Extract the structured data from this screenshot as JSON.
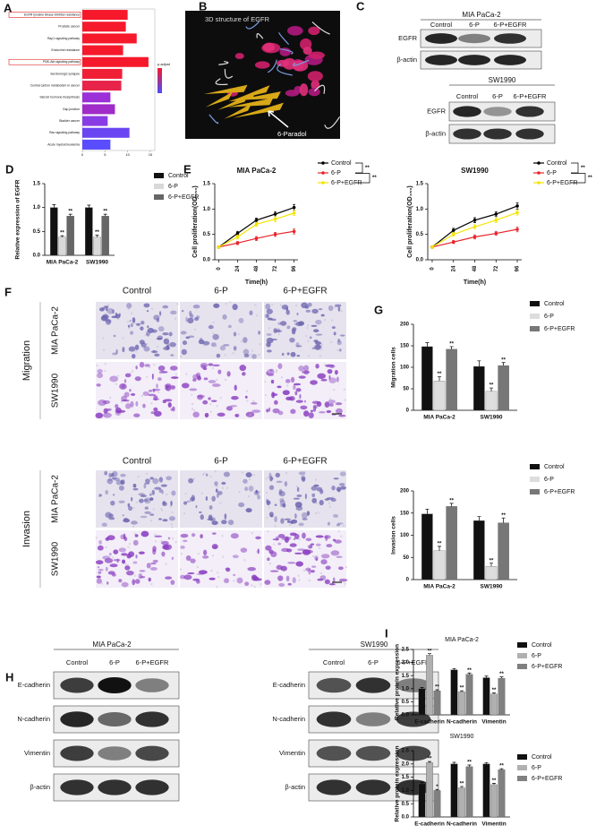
{
  "panel_letters": [
    "A",
    "B",
    "C",
    "D",
    "E",
    "F",
    "G",
    "H",
    "I"
  ],
  "A": {
    "chart_data": {
      "type": "hbar",
      "legend_title": "p.adjust",
      "categories": [
        "EGFR tyrosine kinase inhibitor resistance",
        "Prostate cancer",
        "Rap1 signaling pathway",
        "Endocrine resistance",
        "PI3K-Akt signaling pathway",
        "Serotonergic synapse",
        "Central carbon metabolism in cancer",
        "Steroid hormone biosynthesis",
        "Gap junction",
        "Bladder cancer",
        "Ras signaling pathway",
        "Acute myeloid leukemia"
      ],
      "values": [
        10,
        9.6,
        12,
        9,
        14.6,
        8.8,
        8.6,
        6.2,
        7.2,
        5.6,
        10.4,
        6.2
      ],
      "colors": [
        "#f5192b",
        "#f5192b",
        "#f5192b",
        "#f5192b",
        "#f5192b",
        "#f01f35",
        "#e8244a",
        "#9b2fd8",
        "#a02bc8",
        "#8a3ce4",
        "#6a45f2",
        "#5a4cff"
      ],
      "highlighted": [
        0,
        4
      ],
      "xlim": [
        0,
        16
      ],
      "xticks": [
        0,
        5,
        10,
        15
      ]
    }
  },
  "B": {
    "title": "3D structure of EGFR",
    "arrow_label": "6-Paradol"
  },
  "C": {
    "blots": [
      {
        "cell_line": "MIA PaCa-2",
        "lanes": [
          "Control",
          "6-P",
          "6-P+EGFR"
        ],
        "rows": [
          "EGFR",
          "β-actin"
        ]
      },
      {
        "cell_line": "SW1990",
        "lanes": [
          "Control",
          "6-P",
          "6-P+EGFR"
        ],
        "rows": [
          "EGFR",
          "β-actin"
        ]
      }
    ]
  },
  "D": {
    "chart_data": {
      "type": "bar",
      "ylabel": "Relative expression of EGFR",
      "categories": [
        "MIA PaCa-2",
        "SW1990"
      ],
      "series": [
        {
          "name": "Control",
          "color": "#111111",
          "values": [
            1.0,
            1.0
          ],
          "errors": [
            0.06,
            0.05
          ],
          "sig": [
            null,
            null
          ]
        },
        {
          "name": "6-P",
          "color": "#d9d9d9",
          "values": [
            0.38,
            0.38
          ],
          "errors": [
            0.03,
            0.04
          ],
          "sig": [
            "**",
            "**"
          ]
        },
        {
          "name": "6-P+EGFR",
          "color": "#666666",
          "values": [
            0.82,
            0.82
          ],
          "errors": [
            0.04,
            0.04
          ],
          "sig": [
            "**",
            "**"
          ]
        }
      ],
      "ylim": [
        0,
        1.5
      ],
      "yticks": [
        {
          "value": 0,
          "label": "0.0"
        },
        0.5,
        {
          "value": 1,
          "label": "1.0"
        },
        1.5
      ]
    }
  },
  "E": {
    "chart_data": [
      {
        "type": "line",
        "title": "MIA PaCa-2",
        "xlabel": "Time(h)",
        "ylabel": "Cell proliferation(OD₄₅₀)",
        "x": [
          0,
          24,
          48,
          72,
          96
        ],
        "xlim": [
          -5,
          101
        ],
        "xticks": [
          0,
          24,
          48,
          72,
          96
        ],
        "ylim": [
          0,
          1.5
        ],
        "yticks": [
          {
            "value": 0,
            "label": "0.0"
          },
          0.5,
          {
            "value": 1,
            "label": "1.0"
          },
          1.5
        ],
        "series": [
          {
            "name": "Control",
            "color": "#000000",
            "values": [
              0.25,
              0.52,
              0.78,
              0.9,
              1.03
            ],
            "errors": [
              0.02,
              0.04,
              0.04,
              0.05,
              0.06
            ]
          },
          {
            "name": "6-P",
            "color": "#e8242a",
            "values": [
              0.25,
              0.33,
              0.42,
              0.5,
              0.56
            ],
            "errors": [
              0.02,
              0.03,
              0.04,
              0.04,
              0.05
            ]
          },
          {
            "name": "6-P+EGFR",
            "color": "#f5e400",
            "values": [
              0.25,
              0.45,
              0.7,
              0.8,
              0.92
            ],
            "errors": [
              0.02,
              0.04,
              0.04,
              0.05,
              0.05
            ]
          }
        ],
        "legend_sig": [
          "**",
          "**"
        ]
      },
      {
        "type": "line",
        "title": "SW1990",
        "xlabel": "Time(h)",
        "ylabel": "Cell proliferation(OD₄₅₀)",
        "x": [
          0,
          24,
          48,
          72,
          96
        ],
        "xlim": [
          -5,
          101
        ],
        "xticks": [
          0,
          24,
          48,
          72,
          96
        ],
        "ylim": [
          0,
          1.5
        ],
        "yticks": [
          {
            "value": 0,
            "label": "0.0"
          },
          0.5,
          {
            "value": 1,
            "label": "1.0"
          },
          1.5
        ],
        "series": [
          {
            "name": "Control",
            "color": "#000000",
            "values": [
              0.25,
              0.58,
              0.78,
              0.9,
              1.06
            ],
            "errors": [
              0.02,
              0.04,
              0.05,
              0.05,
              0.06
            ]
          },
          {
            "name": "6-P",
            "color": "#e8242a",
            "values": [
              0.25,
              0.35,
              0.45,
              0.52,
              0.6
            ],
            "errors": [
              0.02,
              0.03,
              0.04,
              0.04,
              0.05
            ]
          },
          {
            "name": "6-P+EGFR",
            "color": "#f5e400",
            "values": [
              0.25,
              0.5,
              0.65,
              0.78,
              0.93
            ],
            "errors": [
              0.02,
              0.04,
              0.04,
              0.05,
              0.05
            ]
          }
        ],
        "legend_sig": [
          "**",
          "**"
        ]
      }
    ]
  },
  "F": {
    "columns": [
      "Control",
      "6-P",
      "6-P+EGFR"
    ],
    "sections": [
      {
        "name": "Migration",
        "rows": [
          "MIA PaCa-2",
          "SW1990"
        ]
      },
      {
        "name": "Invasion",
        "rows": [
          "MIA PaCa-2",
          "SW1990"
        ]
      }
    ]
  },
  "G": {
    "chart_data": [
      {
        "type": "bar",
        "ylabel": "Migration cells",
        "categories": [
          "MIA PaCa-2",
          "SW1990"
        ],
        "series": [
          {
            "name": "Control",
            "color": "#111111",
            "values": [
              148,
              102
            ],
            "errors": [
              9,
              13
            ],
            "sig": [
              null,
              null
            ]
          },
          {
            "name": "6-P",
            "color": "#dddddd",
            "values": [
              68,
              44
            ],
            "errors": [
              10,
              8
            ],
            "sig": [
              "**",
              "**"
            ]
          },
          {
            "name": "6-P+EGFR",
            "color": "#777777",
            "values": [
              142,
              104
            ],
            "errors": [
              6,
              7
            ],
            "sig": [
              "**",
              "**"
            ]
          }
        ],
        "ylim": [
          0,
          200
        ],
        "yticks": [
          0,
          50,
          100,
          150,
          200
        ]
      },
      {
        "type": "bar",
        "ylabel": "Invasion cells",
        "categories": [
          "MIA PaCa-2",
          "SW1990"
        ],
        "series": [
          {
            "name": "Control",
            "color": "#111111",
            "values": [
              148,
              133
            ],
            "errors": [
              11,
              9
            ],
            "sig": [
              null,
              null
            ]
          },
          {
            "name": "6-P",
            "color": "#dddddd",
            "values": [
              65,
              30
            ],
            "errors": [
              10,
              7
            ],
            "sig": [
              "**",
              "**"
            ]
          },
          {
            "name": "6-P+EGFR",
            "color": "#777777",
            "values": [
              165,
              128
            ],
            "errors": [
              7,
              11
            ],
            "sig": [
              "**",
              "**"
            ]
          }
        ],
        "ylim": [
          0,
          200
        ],
        "yticks": [
          0,
          50,
          100,
          150,
          200
        ]
      }
    ]
  },
  "H": {
    "blots": [
      {
        "cell_line": "MIA PaCa-2",
        "lanes": [
          "Control",
          "6-P",
          "6-P+EGFR"
        ],
        "rows": [
          "E-cadherin",
          "N-cadherin",
          "Vimentin",
          "β-actin"
        ]
      },
      {
        "cell_line": "SW1990",
        "lanes": [
          "Control",
          "6-P",
          "6-P+EGFR"
        ],
        "rows": [
          "E-cadherin",
          "N-cadherin",
          "Vimentin",
          "β-actin"
        ]
      }
    ]
  },
  "I": {
    "chart_data": [
      {
        "type": "bar",
        "title": "MIA PaCa-2",
        "ylabel": "Relative protein expression",
        "categories": [
          "E-cadherin",
          "N-cadherin",
          "Vimentin"
        ],
        "series": [
          {
            "name": "Control",
            "color": "#111111",
            "values": [
              1.0,
              1.72,
              1.42
            ],
            "errors": [
              0.05,
              0.05,
              0.06
            ],
            "sig": [
              null,
              null,
              null
            ]
          },
          {
            "name": "6-P",
            "color": "#b0b0b0",
            "values": [
              2.28,
              0.88,
              0.8
            ],
            "errors": [
              0.06,
              0.04,
              0.04
            ],
            "sig": [
              "**",
              "**",
              "**"
            ]
          },
          {
            "name": "6-P+EGFR",
            "color": "#808080",
            "values": [
              0.92,
              1.55,
              1.4
            ],
            "errors": [
              0.04,
              0.05,
              0.05
            ],
            "sig": [
              "**",
              "**",
              "**"
            ]
          }
        ],
        "ylim": [
          0,
          2.5
        ],
        "yticks": [
          {
            "value": 0,
            "label": "0.0"
          },
          0.5,
          {
            "value": 1,
            "label": "1.0"
          },
          1.5,
          {
            "value": 2,
            "label": "2.0"
          },
          2.5
        ]
      },
      {
        "type": "bar",
        "title": "SW1990",
        "ylabel": "Relative protein expression",
        "categories": [
          "E-cadherin",
          "N-cadherin",
          "Vimentin"
        ],
        "series": [
          {
            "name": "Control",
            "color": "#111111",
            "values": [
              1.25,
              2.0,
              2.0
            ],
            "errors": [
              0.05,
              0.06,
              0.05
            ],
            "sig": [
              null,
              null,
              null
            ]
          },
          {
            "name": "6-P",
            "color": "#b0b0b0",
            "values": [
              2.05,
              1.1,
              1.22
            ],
            "errors": [
              0.04,
              0.05,
              0.05
            ],
            "sig": [
              "**",
              "**",
              "**"
            ]
          },
          {
            "name": "6-P+EGFR",
            "color": "#808080",
            "values": [
              1.0,
              1.9,
              1.78
            ],
            "errors": [
              0.04,
              0.06,
              0.04
            ],
            "sig": [
              "*",
              "**",
              "**"
            ]
          }
        ],
        "ylim": [
          0,
          2.5
        ],
        "yticks": [
          {
            "value": 0,
            "label": "0.0"
          },
          0.5,
          {
            "value": 1,
            "label": "1.0"
          },
          1.5,
          {
            "value": 2,
            "label": "2.0"
          },
          2.5
        ]
      }
    ]
  }
}
